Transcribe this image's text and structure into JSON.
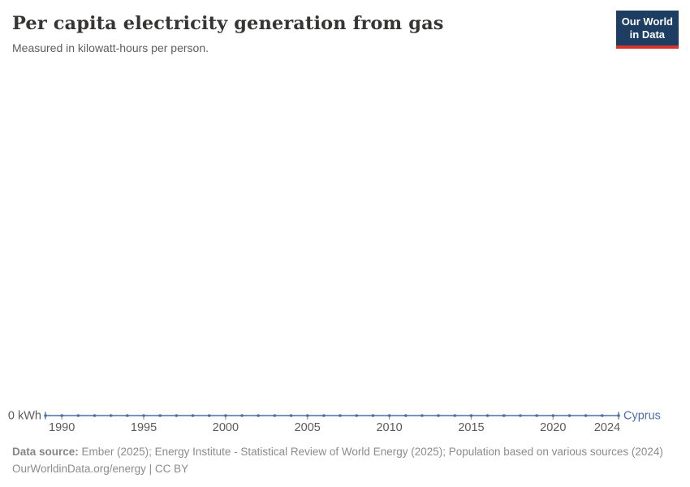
{
  "header": {
    "title": "Per capita electricity generation from gas",
    "subtitle": "Measured in kilowatt-hours per person.",
    "logo": {
      "line1": "Our World",
      "line2": "in Data",
      "bg_color": "#1d3d63",
      "accent_color": "#d8342c"
    }
  },
  "chart_data": {
    "type": "line",
    "title": "Per capita electricity generation from gas",
    "xlabel": "",
    "ylabel": "kilowatt-hours per person",
    "grid": false,
    "legend_position": "end-of-line",
    "x_range": [
      1989,
      2024
    ],
    "ylim": [
      0,
      0
    ],
    "y_axis_label": "0 kWh",
    "x_ticks": [
      1990,
      1995,
      2000,
      2005,
      2010,
      2015,
      2020,
      2024
    ],
    "axis_label_color": "#5b5b5b",
    "tick_color": "#999999",
    "series": [
      {
        "name": "Cyprus",
        "color": "#4c6ea8",
        "x": [
          1989,
          1990,
          1991,
          1992,
          1993,
          1994,
          1995,
          1996,
          1997,
          1998,
          1999,
          2000,
          2001,
          2002,
          2003,
          2004,
          2005,
          2006,
          2007,
          2008,
          2009,
          2010,
          2011,
          2012,
          2013,
          2014,
          2015,
          2016,
          2017,
          2018,
          2019,
          2020,
          2021,
          2022,
          2023,
          2024
        ],
        "values": [
          0,
          0,
          0,
          0,
          0,
          0,
          0,
          0,
          0,
          0,
          0,
          0,
          0,
          0,
          0,
          0,
          0,
          0,
          0,
          0,
          0,
          0,
          0,
          0,
          0,
          0,
          0,
          0,
          0,
          0,
          0,
          0,
          0,
          0,
          0,
          0
        ]
      }
    ]
  },
  "footer": {
    "source_label": "Data source:",
    "source_text": "Ember (2025); Energy Institute - Statistical Review of World Energy (2025); Population based on various sources (2024)",
    "note_line": "OurWorldinData.org/energy | CC BY"
  }
}
